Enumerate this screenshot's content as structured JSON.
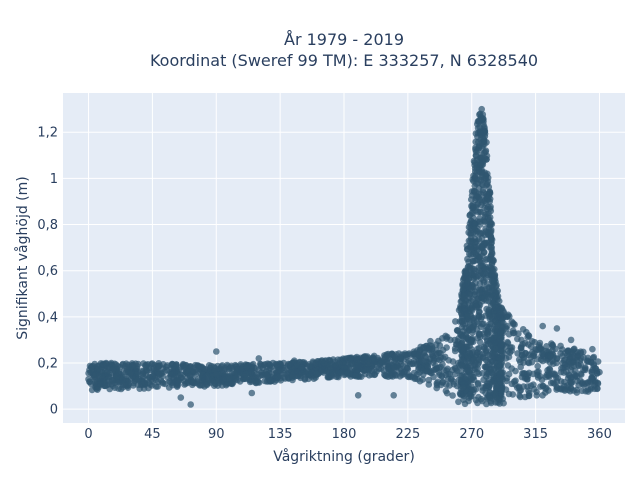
{
  "chart_data": {
    "type": "scatter",
    "title_lines": [
      "År 1979 - 2019",
      "Koordinat (Sweref 99 TM): E 333257, N 6328540"
    ],
    "xlabel": "Vågriktning (grader)",
    "ylabel": "Signifikant våghöjd (m)",
    "xlim": [
      -18,
      378
    ],
    "ylim": [
      -0.06,
      1.37
    ],
    "xticks": [
      0,
      45,
      90,
      135,
      180,
      225,
      270,
      315,
      360
    ],
    "xtick_labels": [
      "0",
      "45",
      "90",
      "135",
      "180",
      "225",
      "270",
      "315",
      "360"
    ],
    "yticks": [
      0,
      0.2,
      0.4,
      0.6,
      0.8,
      1.0,
      1.2
    ],
    "ytick_labels": [
      "0",
      "0,2",
      "0,4",
      "0,6",
      "0,8",
      "1",
      "1,2"
    ],
    "grid": true,
    "plot_bgcolor": "#e5ecf6",
    "marker_color": "#2f5670",
    "envelope": {
      "description_x": [
        0,
        45,
        90,
        135,
        180,
        225,
        250,
        260,
        265,
        270,
        273,
        275,
        278,
        280,
        283,
        286,
        290,
        300,
        315,
        330,
        345,
        360
      ],
      "y_lower": [
        0.08,
        0.09,
        0.1,
        0.12,
        0.14,
        0.14,
        0.08,
        0.03,
        0.02,
        0.02,
        0.02,
        0.02,
        0.02,
        0.02,
        0.02,
        0.02,
        0.02,
        0.03,
        0.05,
        0.07,
        0.07,
        0.08
      ],
      "y_upper": [
        0.2,
        0.2,
        0.19,
        0.2,
        0.22,
        0.25,
        0.32,
        0.4,
        0.6,
        0.95,
        1.2,
        1.28,
        1.28,
        1.2,
        0.95,
        0.6,
        0.45,
        0.38,
        0.3,
        0.28,
        0.26,
        0.22
      ]
    },
    "series": [
      {
        "points": [
          [
            0,
            0.13
          ],
          [
            5,
            0.15
          ],
          [
            10,
            0.12
          ],
          [
            15,
            0.18
          ],
          [
            20,
            0.14
          ],
          [
            25,
            0.11
          ],
          [
            30,
            0.16
          ],
          [
            35,
            0.13
          ],
          [
            40,
            0.19
          ],
          [
            45,
            0.12
          ],
          [
            50,
            0.15
          ],
          [
            55,
            0.17
          ],
          [
            60,
            0.13
          ],
          [
            65,
            0.18
          ],
          [
            70,
            0.12
          ],
          [
            75,
            0.16
          ],
          [
            80,
            0.14
          ],
          [
            85,
            0.19
          ],
          [
            90,
            0.15
          ],
          [
            95,
            0.13
          ],
          [
            100,
            0.18
          ],
          [
            105,
            0.16
          ],
          [
            110,
            0.14
          ],
          [
            115,
            0.19
          ],
          [
            120,
            0.17
          ],
          [
            125,
            0.15
          ],
          [
            130,
            0.2
          ],
          [
            135,
            0.17
          ],
          [
            140,
            0.15
          ],
          [
            145,
            0.21
          ],
          [
            150,
            0.18
          ],
          [
            155,
            0.16
          ],
          [
            160,
            0.2
          ],
          [
            165,
            0.17
          ],
          [
            170,
            0.21
          ],
          [
            175,
            0.19
          ],
          [
            180,
            0.18
          ],
          [
            185,
            0.22
          ],
          [
            190,
            0.19
          ],
          [
            195,
            0.17
          ],
          [
            200,
            0.21
          ],
          [
            205,
            0.19
          ],
          [
            210,
            0.23
          ],
          [
            215,
            0.18
          ],
          [
            220,
            0.22
          ],
          [
            225,
            0.2
          ],
          [
            230,
            0.24
          ],
          [
            235,
            0.21
          ],
          [
            240,
            0.26
          ],
          [
            245,
            0.28
          ],
          [
            250,
            0.22
          ],
          [
            255,
            0.3
          ],
          [
            260,
            0.34
          ],
          [
            263,
            0.38
          ],
          [
            265,
            0.45
          ],
          [
            267,
            0.55
          ],
          [
            269,
            0.7
          ],
          [
            271,
            0.85
          ],
          [
            272,
            1.0
          ],
          [
            273,
            1.1
          ],
          [
            274,
            1.18
          ],
          [
            275,
            1.25
          ],
          [
            276,
            1.28
          ],
          [
            277,
            1.3
          ],
          [
            278,
            1.26
          ],
          [
            279,
            1.2
          ],
          [
            280,
            1.12
          ],
          [
            281,
            1.02
          ],
          [
            282,
            0.92
          ],
          [
            283,
            0.8
          ],
          [
            284,
            0.7
          ],
          [
            285,
            0.6
          ],
          [
            287,
            0.5
          ],
          [
            290,
            0.42
          ],
          [
            295,
            0.36
          ],
          [
            300,
            0.33
          ],
          [
            305,
            0.3
          ],
          [
            310,
            0.28
          ],
          [
            315,
            0.26
          ],
          [
            320,
            0.24
          ],
          [
            325,
            0.23
          ],
          [
            330,
            0.22
          ],
          [
            335,
            0.21
          ],
          [
            340,
            0.2
          ],
          [
            345,
            0.19
          ],
          [
            350,
            0.18
          ],
          [
            355,
            0.17
          ],
          [
            360,
            0.16
          ],
          [
            280,
            0.1
          ],
          [
            290,
            0.15
          ],
          [
            300,
            0.12
          ],
          [
            310,
            0.08
          ],
          [
            320,
            0.1
          ],
          [
            330,
            0.12
          ],
          [
            340,
            0.09
          ],
          [
            350,
            0.11
          ],
          [
            270,
            0.3
          ],
          [
            275,
            0.4
          ],
          [
            280,
            0.5
          ],
          [
            285,
            0.3
          ],
          [
            275,
            0.6
          ],
          [
            276,
            0.8
          ],
          [
            278,
            0.95
          ],
          [
            277,
            0.7
          ],
          [
            65,
            0.05
          ],
          [
            72,
            0.02
          ],
          [
            90,
            0.25
          ],
          [
            115,
            0.07
          ],
          [
            190,
            0.06
          ],
          [
            215,
            0.06
          ],
          [
            120,
            0.22
          ],
          [
            330,
            0.35
          ],
          [
            340,
            0.3
          ],
          [
            355,
            0.26
          ],
          [
            320,
            0.36
          ],
          [
            310,
            0.32
          ]
        ]
      }
    ]
  }
}
